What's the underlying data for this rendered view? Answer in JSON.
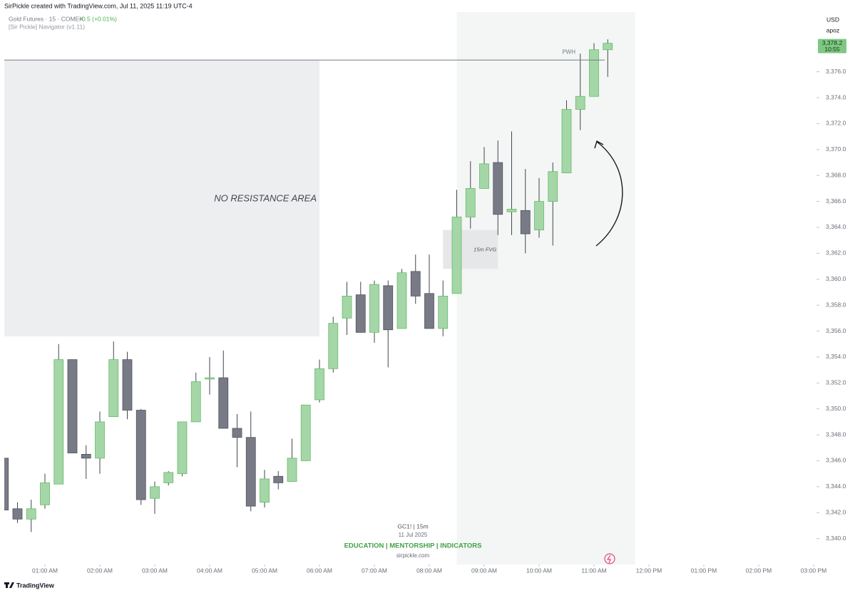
{
  "header": {
    "credit": "SirPickle created with TradingView.com, Jul 11, 2025 11:19 UTC-4",
    "symbol": "Gold Futures · 15 · COMEX",
    "change": "+0.5 (+0.01%)",
    "indicator": "[Sir Pickle] Navigator (v1.11)",
    "currency": "USD",
    "scale_mode": "apoz"
  },
  "footer": {
    "brand": "TradingView"
  },
  "chart_data": {
    "type": "candlestick",
    "x": [
      "12:15 AM",
      "12:30 AM",
      "12:45 AM",
      "01:00 AM",
      "01:15 AM",
      "01:30 AM",
      "01:45 AM",
      "02:00 AM",
      "02:15 AM",
      "02:30 AM",
      "02:45 AM",
      "03:00 AM",
      "03:15 AM",
      "03:30 AM",
      "03:45 AM",
      "04:00 AM",
      "04:15 AM",
      "04:30 AM",
      "04:45 AM",
      "05:00 AM",
      "05:15 AM",
      "05:30 AM",
      "05:45 AM",
      "06:00 AM",
      "06:15 AM",
      "06:30 AM",
      "06:45 AM",
      "07:00 AM",
      "07:15 AM",
      "07:30 AM",
      "07:45 AM",
      "08:00 AM",
      "08:15 AM",
      "08:30 AM",
      "08:45 AM",
      "09:00 AM",
      "09:15 AM",
      "09:30 AM",
      "09:45 AM",
      "10:00 AM",
      "10:15 AM",
      "10:30 AM",
      "10:45 AM",
      "11:00 AM",
      "11:15 AM"
    ],
    "open": [
      3346.2,
      3342.3,
      3341.5,
      3342.6,
      3344.2,
      3353.8,
      3346.5,
      3346.2,
      3349.4,
      3353.8,
      3349.9,
      3343.1,
      3344.3,
      3345.0,
      3349.0,
      3352.3,
      3352.4,
      3348.5,
      3347.8,
      3342.8,
      3344.8,
      3344.4,
      3346.0,
      3350.7,
      3353.1,
      3357.0,
      3358.8,
      3355.9,
      3359.5,
      3356.2,
      3360.6,
      3358.9,
      3356.2,
      3358.9,
      3364.8,
      3367.0,
      3369.0,
      3365.2,
      3365.3,
      3363.8,
      3366.0,
      3368.2,
      3373.1,
      3374.1,
      3377.7
    ],
    "high": [
      3346.3,
      3342.8,
      3343.0,
      3345.0,
      3355.0,
      3353.8,
      3347.2,
      3349.8,
      3355.2,
      3354.4,
      3350.0,
      3344.4,
      3345.2,
      3349.0,
      3352.8,
      3354.0,
      3354.5,
      3349.6,
      3349.8,
      3345.3,
      3345.2,
      3347.7,
      3350.3,
      3353.8,
      3357.1,
      3359.8,
      3359.8,
      3359.9,
      3359.9,
      3360.8,
      3361.9,
      3361.9,
      3359.9,
      3366.9,
      3369.1,
      3370.2,
      3370.7,
      3371.4,
      3368.5,
      3367.8,
      3369.0,
      3373.8,
      3377.4,
      3378.2,
      3378.5
    ],
    "low": [
      3342.2,
      3341.2,
      3340.5,
      3342.3,
      3344.2,
      3346.6,
      3344.6,
      3345.0,
      3349.4,
      3349.2,
      3342.6,
      3341.9,
      3344.1,
      3344.8,
      3349.0,
      3351.1,
      3348.5,
      3345.5,
      3342.1,
      3342.4,
      3343.8,
      3344.4,
      3346.0,
      3350.5,
      3352.8,
      3355.7,
      3355.9,
      3355.1,
      3353.2,
      3356.2,
      3358.1,
      3356.2,
      3355.6,
      3358.9,
      3363.9,
      3367.0,
      3363.4,
      3363.4,
      3362.0,
      3363.2,
      3362.6,
      3368.2,
      3371.5,
      3374.1,
      3375.6
    ],
    "close": [
      3342.2,
      3341.5,
      3342.3,
      3344.3,
      3353.8,
      3346.6,
      3346.2,
      3349.0,
      3353.8,
      3349.9,
      3343.0,
      3344.0,
      3345.1,
      3349.0,
      3352.1,
      3352.4,
      3348.5,
      3347.8,
      3342.5,
      3344.6,
      3344.3,
      3346.2,
      3350.3,
      3353.1,
      3356.6,
      3358.7,
      3355.9,
      3359.6,
      3356.1,
      3360.5,
      3358.7,
      3356.2,
      3358.7,
      3364.8,
      3367.0,
      3368.9,
      3365.0,
      3365.4,
      3363.5,
      3366.0,
      3368.3,
      3373.1,
      3374.1,
      3377.7,
      3378.2
    ],
    "up_color": "#a5d6a7",
    "down_color": "#787b86",
    "xlim": [
      "12:15 AM",
      "03:00 PM"
    ],
    "xticks": [
      "01:00 AM",
      "02:00 AM",
      "03:00 AM",
      "04:00 AM",
      "05:00 AM",
      "06:00 AM",
      "07:00 AM",
      "08:00 AM",
      "09:00 AM",
      "10:00 AM",
      "11:00 AM",
      "12:00 PM",
      "01:00 PM",
      "02:00 PM",
      "03:00 PM"
    ],
    "ylim": [
      3338.0,
      3380.6
    ],
    "yticks": [
      {
        "value": 3340,
        "label": "3,340.0"
      },
      {
        "value": 3342,
        "label": "3,342.0"
      },
      {
        "value": 3344,
        "label": "3,344.0"
      },
      {
        "value": 3346,
        "label": "3,346.0"
      },
      {
        "value": 3348,
        "label": "3,348.0"
      },
      {
        "value": 3350,
        "label": "3,350.0"
      },
      {
        "value": 3352,
        "label": "3,352.0"
      },
      {
        "value": 3354,
        "label": "3,354.0"
      },
      {
        "value": 3356,
        "label": "3,356.0"
      },
      {
        "value": 3358,
        "label": "3,358.0"
      },
      {
        "value": 3360,
        "label": "3,360.0"
      },
      {
        "value": 3362,
        "label": "3,362.0"
      },
      {
        "value": 3364,
        "label": "3,364.0"
      },
      {
        "value": 3366,
        "label": "3,366.0"
      },
      {
        "value": 3368,
        "label": "3,368.0"
      },
      {
        "value": 3370,
        "label": "3,370.0"
      },
      {
        "value": 3372,
        "label": "3,372.0"
      },
      {
        "value": 3374,
        "label": "3,374.0"
      },
      {
        "value": 3376,
        "label": "3,376.0"
      }
    ],
    "last_price": {
      "value": 3378.2,
      "label": "3,378.2",
      "countdown": "10:55"
    },
    "level": {
      "label": "PWH",
      "value": 3376.9
    },
    "zones": [
      {
        "label": "NO RESISTANCE AREA",
        "from": "12:15 AM",
        "to": "06:00 AM",
        "top": 3376.9,
        "bottom": 3355.6,
        "color": "#eceef0"
      },
      {
        "label": "15m FVG",
        "from": "08:15 AM",
        "to": "09:15 AM",
        "top": 3363.8,
        "bottom": 3360.8,
        "color": "#e6e7e9"
      }
    ],
    "session": {
      "from": "08:30 AM",
      "to": "11:45 AM",
      "color": "#f3f6f4"
    },
    "watermark": {
      "line1": "GC1!  |  15m",
      "line2": "11 Jul 2025",
      "line3": "EDUCATION  |  MENTORSHIP  |  INDICATORS",
      "line4": "sirpickle.com"
    }
  }
}
